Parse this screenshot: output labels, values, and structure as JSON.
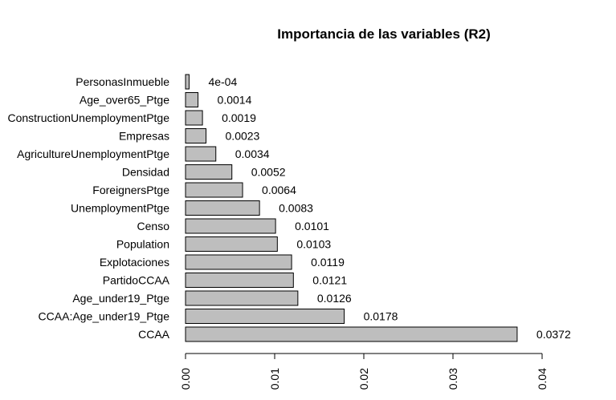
{
  "chart_data": {
    "type": "bar",
    "orientation": "horizontal",
    "title": "Importancia de las variables (R2)",
    "xlabel": "",
    "ylabel": "",
    "xlim": [
      0,
      0.04
    ],
    "x_ticks": [
      "0.00",
      "0.01",
      "0.02",
      "0.03",
      "0.04"
    ],
    "bar_color": "#bebebe",
    "categories": [
      "PersonasInmueble",
      "Age_over65_Ptge",
      "ConstructionUnemploymentPtge",
      "Empresas",
      "AgricultureUnemploymentPtge",
      "Densidad",
      "ForeignersPtge",
      "UnemploymentPtge",
      "Censo",
      "Population",
      "Explotaciones",
      "PartidoCCAA",
      "Age_under19_Ptge",
      "CCAA:Age_under19_Ptge",
      "CCAA"
    ],
    "values": [
      0.0004,
      0.0014,
      0.0019,
      0.0023,
      0.0034,
      0.0052,
      0.0064,
      0.0083,
      0.0101,
      0.0103,
      0.0119,
      0.0121,
      0.0126,
      0.0178,
      0.0372
    ],
    "value_labels": [
      "4e-04",
      "0.0014",
      "0.0019",
      "0.0023",
      "0.0034",
      "0.0052",
      "0.0064",
      "0.0083",
      "0.0101",
      "0.0103",
      "0.0119",
      "0.0121",
      "0.0126",
      "0.0178",
      "0.0372"
    ]
  }
}
